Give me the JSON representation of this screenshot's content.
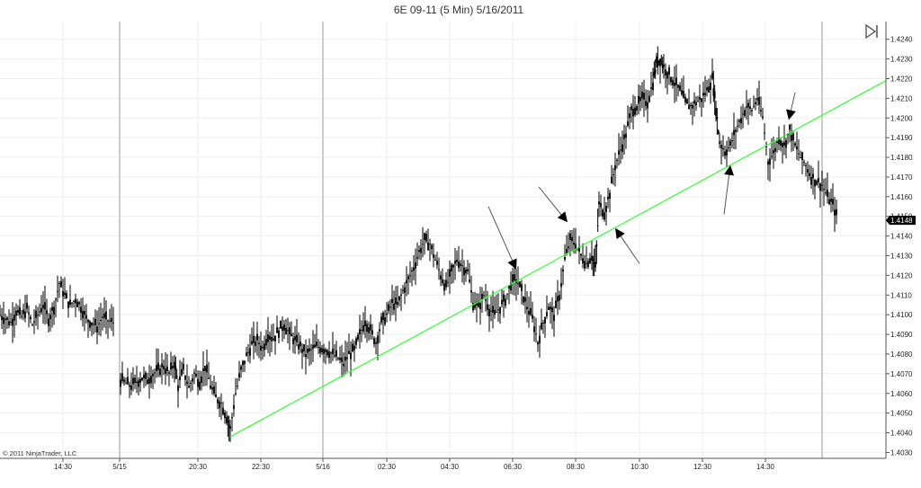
{
  "chart_data": {
    "type": "candlestick",
    "title": "6E 09-11 (5 Min)  5/16/2011",
    "copyright": "© 2011 NinjaTrader, LLC",
    "y_ticks": [
      "1.4030",
      "1.4040",
      "1.4050",
      "1.4060",
      "1.4070",
      "1.4080",
      "1.4090",
      "1.4100",
      "1.4110",
      "1.4120",
      "1.4130",
      "1.4140",
      "1.4150",
      "1.4160",
      "1.4170",
      "1.4180",
      "1.4190",
      "1.4200",
      "1.4210",
      "1.4220",
      "1.4230",
      "1.4240"
    ],
    "y_tick_values": [
      1.403,
      1.404,
      1.405,
      1.406,
      1.407,
      1.408,
      1.409,
      1.41,
      1.411,
      1.412,
      1.413,
      1.414,
      1.415,
      1.416,
      1.417,
      1.418,
      1.419,
      1.42,
      1.421,
      1.422,
      1.423,
      1.424
    ],
    "ylim": [
      1.4027,
      1.4249
    ],
    "x_ticks": [
      "14:30",
      "5/15",
      "20:30",
      "22:30",
      "5/16",
      "02:30",
      "04:30",
      "06:30",
      "08:30",
      "10:30",
      "12:30",
      "14:30"
    ],
    "last_price": "1.4148",
    "grid": true,
    "colors": {
      "up": "#000000",
      "down": "#000000",
      "trendline": "#33ff33",
      "grid": "#eeeeee",
      "separator": "#cccccc"
    },
    "price_path": [
      [
        0,
        1.41
      ],
      [
        6,
        1.4098
      ],
      [
        12,
        1.4096
      ],
      [
        18,
        1.4102
      ],
      [
        24,
        1.4099
      ],
      [
        30,
        1.4103
      ],
      [
        36,
        1.4095
      ],
      [
        42,
        1.41
      ],
      [
        48,
        1.4105
      ],
      [
        54,
        1.4098
      ],
      [
        60,
        1.4104
      ],
      [
        66,
        1.4116
      ],
      [
        72,
        1.411
      ],
      [
        78,
        1.4105
      ],
      [
        84,
        1.4108
      ],
      [
        90,
        1.4104
      ],
      [
        96,
        1.4098
      ],
      [
        102,
        1.4096
      ],
      [
        108,
        1.4094
      ],
      [
        114,
        1.4099
      ],
      [
        120,
        1.4097
      ],
      [
        126,
        1.4096
      ],
      [
        134,
        1.4067
      ],
      [
        140,
        1.4065
      ],
      [
        146,
        1.4064
      ],
      [
        152,
        1.4066
      ],
      [
        158,
        1.4068
      ],
      [
        164,
        1.4067
      ],
      [
        170,
        1.407
      ],
      [
        176,
        1.4072
      ],
      [
        182,
        1.4074
      ],
      [
        188,
        1.407
      ],
      [
        194,
        1.4076
      ],
      [
        198,
        1.4064
      ],
      [
        204,
        1.4072
      ],
      [
        210,
        1.4063
      ],
      [
        216,
        1.407
      ],
      [
        222,
        1.4066
      ],
      [
        228,
        1.4074
      ],
      [
        234,
        1.4064
      ],
      [
        240,
        1.4058
      ],
      [
        246,
        1.4055
      ],
      [
        252,
        1.4048
      ],
      [
        256,
        1.4042
      ],
      [
        262,
        1.406
      ],
      [
        268,
        1.4072
      ],
      [
        274,
        1.4079
      ],
      [
        280,
        1.4085
      ],
      [
        286,
        1.4087
      ],
      [
        292,
        1.4083
      ],
      [
        298,
        1.409
      ],
      [
        304,
        1.4088
      ],
      [
        310,
        1.4092
      ],
      [
        316,
        1.4095
      ],
      [
        322,
        1.409
      ],
      [
        328,
        1.4087
      ],
      [
        334,
        1.4084
      ],
      [
        340,
        1.408
      ],
      [
        346,
        1.4082
      ],
      [
        352,
        1.4084
      ],
      [
        358,
        1.4083
      ],
      [
        364,
        1.4082
      ],
      [
        370,
        1.408
      ],
      [
        376,
        1.4078
      ],
      [
        382,
        1.4075
      ],
      [
        388,
        1.408
      ],
      [
        394,
        1.4082
      ],
      [
        400,
        1.409
      ],
      [
        406,
        1.4097
      ],
      [
        412,
        1.4092
      ],
      [
        418,
        1.4086
      ],
      [
        424,
        1.4096
      ],
      [
        430,
        1.41
      ],
      [
        436,
        1.4106
      ],
      [
        442,
        1.4105
      ],
      [
        448,
        1.4112
      ],
      [
        454,
        1.4118
      ],
      [
        460,
        1.4124
      ],
      [
        466,
        1.4132
      ],
      [
        472,
        1.4138
      ],
      [
        478,
        1.4136
      ],
      [
        484,
        1.4128
      ],
      [
        490,
        1.412
      ],
      [
        496,
        1.4114
      ],
      [
        502,
        1.4122
      ],
      [
        508,
        1.4128
      ],
      [
        514,
        1.4125
      ],
      [
        520,
        1.4122
      ],
      [
        526,
        1.4106
      ],
      [
        532,
        1.4104
      ],
      [
        538,
        1.411
      ],
      [
        544,
        1.4103
      ],
      [
        550,
        1.41
      ],
      [
        556,
        1.4104
      ],
      [
        562,
        1.4108
      ],
      [
        568,
        1.4116
      ],
      [
        574,
        1.4118
      ],
      [
        580,
        1.4112
      ],
      [
        586,
        1.4104
      ],
      [
        592,
        1.4098
      ],
      [
        598,
        1.4086
      ],
      [
        604,
        1.4096
      ],
      [
        610,
        1.4104
      ],
      [
        616,
        1.41
      ],
      [
        622,
        1.411
      ],
      [
        628,
        1.4128
      ],
      [
        634,
        1.4138
      ],
      [
        640,
        1.4136
      ],
      [
        646,
        1.413
      ],
      [
        652,
        1.4126
      ],
      [
        658,
        1.413
      ],
      [
        662,
        1.4124
      ],
      [
        666,
        1.4156
      ],
      [
        672,
        1.4152
      ],
      [
        678,
        1.4162
      ],
      [
        684,
        1.4176
      ],
      [
        690,
        1.4184
      ],
      [
        696,
        1.4192
      ],
      [
        702,
        1.4204
      ],
      [
        708,
        1.4206
      ],
      [
        714,
        1.421
      ],
      [
        720,
        1.4208
      ],
      [
        726,
        1.4218
      ],
      [
        730,
        1.4228
      ],
      [
        734,
        1.423
      ],
      [
        738,
        1.4226
      ],
      [
        744,
        1.4222
      ],
      [
        750,
        1.4218
      ],
      [
        756,
        1.4214
      ],
      [
        762,
        1.4208
      ],
      [
        768,
        1.4206
      ],
      [
        774,
        1.4208
      ],
      [
        780,
        1.421
      ],
      [
        786,
        1.4214
      ],
      [
        792,
        1.422
      ],
      [
        796,
        1.4205
      ],
      [
        800,
        1.4188
      ],
      [
        806,
        1.4183
      ],
      [
        812,
        1.4186
      ],
      [
        818,
        1.4194
      ],
      [
        824,
        1.42
      ],
      [
        830,
        1.4206
      ],
      [
        836,
        1.4204
      ],
      [
        842,
        1.421
      ],
      [
        848,
        1.42
      ],
      [
        854,
        1.4178
      ],
      [
        860,
        1.4182
      ],
      [
        866,
        1.419
      ],
      [
        872,
        1.4186
      ],
      [
        878,
        1.4194
      ],
      [
        884,
        1.4186
      ],
      [
        890,
        1.418
      ],
      [
        896,
        1.4176
      ],
      [
        902,
        1.417
      ],
      [
        908,
        1.4168
      ],
      [
        914,
        1.4166
      ],
      [
        920,
        1.416
      ],
      [
        926,
        1.4156
      ],
      [
        932,
        1.4148
      ]
    ],
    "trendline": {
      "from": [
        256,
        1.4038
      ],
      "to": [
        985,
        1.4219
      ]
    },
    "arrows": [
      {
        "from": [
          543,
          1.4155
        ],
        "to": [
          574,
          1.4123
        ]
      },
      {
        "from": [
          599,
          1.4165
        ],
        "to": [
          631,
          1.4147
        ]
      },
      {
        "from": [
          711,
          1.4126
        ],
        "to": [
          684,
          1.4144
        ]
      },
      {
        "from": [
          805,
          1.4151
        ],
        "to": [
          812,
          1.4176
        ]
      },
      {
        "from": [
          884,
          1.4213
        ],
        "to": [
          877,
          1.4199
        ]
      }
    ]
  }
}
